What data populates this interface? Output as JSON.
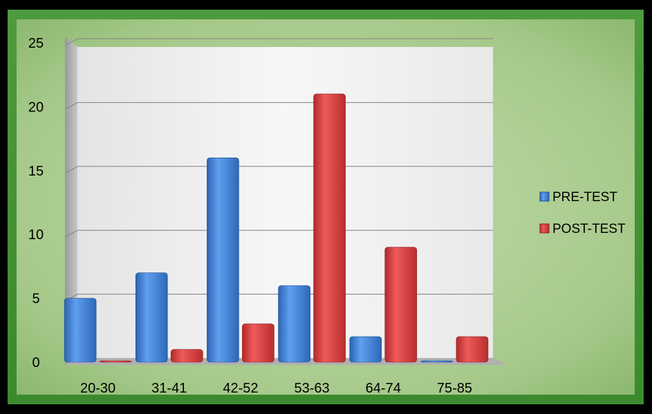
{
  "chart_data": {
    "type": "bar",
    "categories": [
      "20-30",
      "31-41",
      "42-52",
      "53-63",
      "64-74",
      "75-85"
    ],
    "series": [
      {
        "name": "PRE-TEST",
        "color": "#3a7fd5",
        "values": [
          5,
          7,
          16,
          6,
          2,
          0
        ]
      },
      {
        "name": "POST-TEST",
        "color": "#d83a3a",
        "values": [
          0,
          1,
          3,
          21,
          9,
          2
        ]
      }
    ],
    "y_ticks": [
      "0",
      "5",
      "10",
      "15",
      "20",
      "25"
    ],
    "ylim": [
      0,
      25
    ],
    "grid": true,
    "legend_position": "right",
    "background_color": "#a6c98a",
    "plot_wall_color": "#f0f0f0"
  }
}
